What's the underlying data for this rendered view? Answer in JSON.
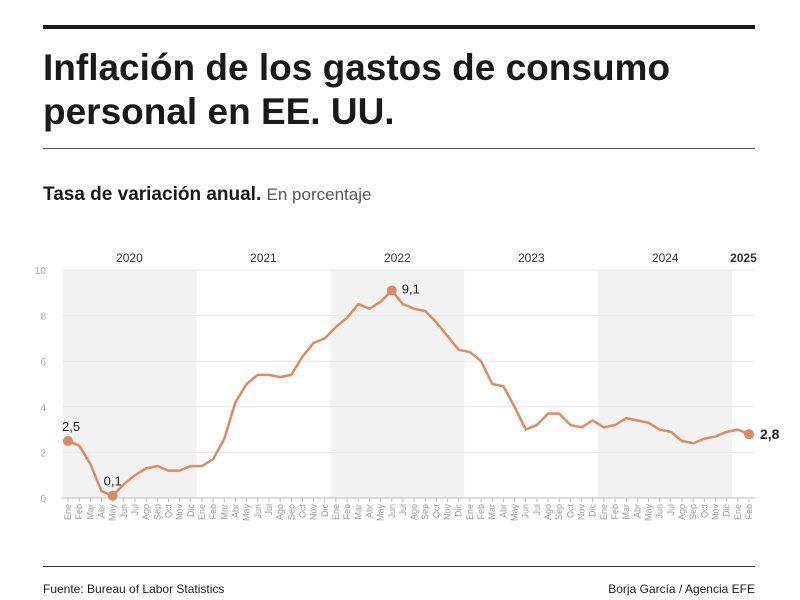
{
  "header": {
    "title": "Inflación de los gastos de consumo personal en EE. UU.",
    "subtitle_bold": "Tasa de variación anual.",
    "subtitle_unit": "En porcentaje"
  },
  "footer": {
    "source": "Fuente: Bureau of Labor Statistics",
    "credit": "Borja García / Agencia EFE"
  },
  "chart_data": {
    "type": "line",
    "title": "Inflación de los gastos de consumo personal en EE. UU.",
    "ylabel": "En porcentaje",
    "ylim": [
      0,
      10
    ],
    "yticks": [
      "0",
      "2",
      "4",
      "6",
      "8",
      "10"
    ],
    "grid": true,
    "line_color": "#d98c62",
    "band_color": "#f2f2f2",
    "years": [
      {
        "label": "2020",
        "start": 0,
        "count": 12,
        "shaded": true
      },
      {
        "label": "2021",
        "start": 12,
        "count": 12,
        "shaded": false
      },
      {
        "label": "2022",
        "start": 24,
        "count": 12,
        "shaded": true
      },
      {
        "label": "2023",
        "start": 36,
        "count": 12,
        "shaded": false
      },
      {
        "label": "2024",
        "start": 48,
        "count": 12,
        "shaded": true
      },
      {
        "label": "2025",
        "start": 60,
        "count": 2,
        "shaded": false,
        "bold": true
      }
    ],
    "months": [
      "Ene",
      "Feb",
      "Mar",
      "Abr",
      "May",
      "Jun",
      "Jul",
      "Ago",
      "Sep",
      "Oct",
      "Nov",
      "Dic",
      "Ene",
      "Feb",
      "Mar",
      "Abr",
      "May",
      "Jun",
      "Jul",
      "Ago",
      "Sep",
      "Oct",
      "Nov",
      "Dic",
      "Ene",
      "Feb",
      "Mar",
      "Abr",
      "May",
      "Jun",
      "Jul",
      "Ago",
      "Sep",
      "Oct",
      "Nov",
      "Dic",
      "Ene",
      "Feb",
      "Mar",
      "Abr",
      "May",
      "Jun",
      "Jul",
      "Ago",
      "Sep",
      "Oct",
      "Nov",
      "Dic",
      "Ene",
      "Feb",
      "Mar",
      "Abr",
      "May",
      "Jun",
      "Jul",
      "Ago",
      "Sep",
      "Oct",
      "Nov",
      "Dic",
      "Ene",
      "Feb"
    ],
    "values": [
      2.5,
      2.3,
      1.5,
      0.3,
      0.1,
      0.6,
      1.0,
      1.3,
      1.4,
      1.2,
      1.2,
      1.4,
      1.4,
      1.7,
      2.6,
      4.2,
      5.0,
      5.4,
      5.4,
      5.3,
      5.4,
      6.2,
      6.8,
      7.0,
      7.5,
      7.9,
      8.5,
      8.3,
      8.6,
      9.1,
      8.5,
      8.3,
      8.2,
      7.7,
      7.1,
      6.5,
      6.4,
      6.0,
      5.0,
      4.9,
      4.0,
      3.0,
      3.2,
      3.7,
      3.7,
      3.2,
      3.1,
      3.4,
      3.1,
      3.2,
      3.5,
      3.4,
      3.3,
      3.0,
      2.9,
      2.5,
      2.4,
      2.6,
      2.7,
      2.9,
      3.0,
      2.8
    ],
    "annotations": [
      {
        "index": 0,
        "label": "2,5"
      },
      {
        "index": 4,
        "label": "0,1"
      },
      {
        "index": 29,
        "label": "9,1"
      },
      {
        "index": 61,
        "label": "2,8",
        "bold": true
      }
    ]
  }
}
